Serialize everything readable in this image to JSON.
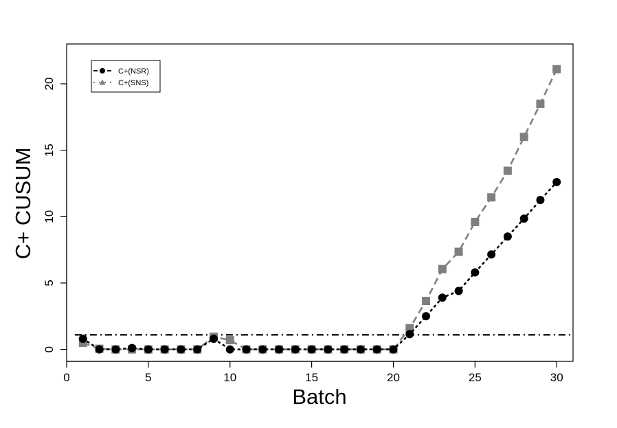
{
  "chart_data": {
    "type": "line",
    "xlabel": "Batch",
    "ylabel": "C+ CUSUM",
    "xlim": [
      0,
      31
    ],
    "ylim": [
      -0.9,
      23
    ],
    "xticks": [
      0,
      5,
      10,
      15,
      20,
      25,
      30
    ],
    "yticks": [
      0,
      5,
      10,
      15,
      20
    ],
    "grid": false,
    "legend_position": "top-left",
    "reference_line": {
      "y": 1.1,
      "style": "dash-dot",
      "color": "#000000"
    },
    "series": [
      {
        "name": "C+(NSR)",
        "marker": "circle",
        "line": "dotted",
        "color": "#000000",
        "x": [
          1,
          2,
          3,
          4,
          5,
          6,
          7,
          8,
          9,
          10,
          11,
          12,
          13,
          14,
          15,
          16,
          17,
          18,
          19,
          20,
          21,
          22,
          23,
          24,
          25,
          26,
          27,
          28,
          29,
          30
        ],
        "y": [
          0.8,
          0,
          0,
          0.1,
          0,
          0,
          0,
          0,
          0.8,
          0,
          0,
          0,
          0,
          0,
          0,
          0,
          0,
          0,
          0,
          0,
          1.15,
          2.5,
          3.9,
          4.4,
          5.8,
          7.15,
          8.5,
          9.85,
          11.25,
          12.6
        ]
      },
      {
        "name": "C+(SNS)",
        "legend_marker": "triangle",
        "marker": "square",
        "line": "dashed",
        "color": "#7f7f7f",
        "x": [
          1,
          2,
          3,
          4,
          5,
          6,
          7,
          8,
          9,
          10,
          11,
          12,
          13,
          14,
          15,
          16,
          17,
          18,
          19,
          20,
          21,
          22,
          23,
          24,
          25,
          26,
          27,
          28,
          29,
          30
        ],
        "y": [
          0.5,
          0.05,
          0,
          0,
          0,
          0,
          0,
          0,
          0.95,
          0.7,
          0,
          0,
          0,
          0,
          0,
          0,
          0,
          0,
          0,
          0,
          1.6,
          3.65,
          6.05,
          7.35,
          9.6,
          11.45,
          13.45,
          16,
          18.5,
          21.1
        ]
      }
    ]
  }
}
